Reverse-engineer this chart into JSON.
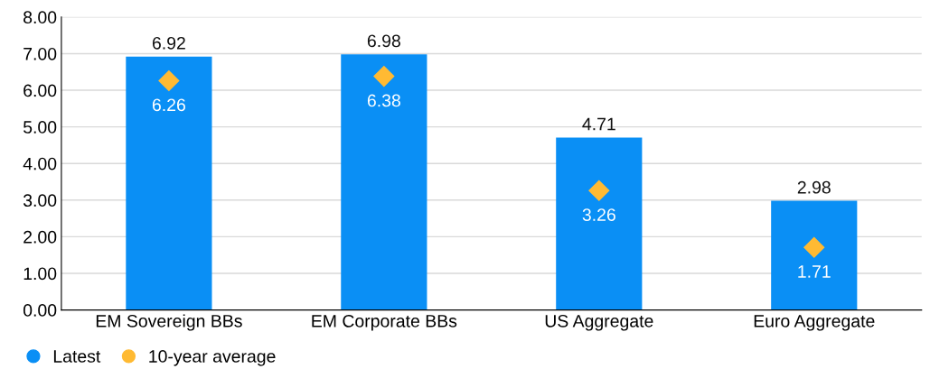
{
  "chart_data": {
    "type": "bar",
    "categories": [
      "EM Sovereign BBs",
      "EM Corporate BBs",
      "US Aggregate",
      "Euro Aggregate"
    ],
    "series": [
      {
        "name": "Latest",
        "color": "#0a8ff5",
        "values": [
          6.92,
          6.98,
          4.71,
          2.98
        ]
      },
      {
        "name": "10-year average",
        "type": "scatter",
        "marker": "diamond",
        "color": "#ffba33",
        "values": [
          6.26,
          6.38,
          3.26,
          1.71
        ]
      }
    ],
    "ylim": [
      0,
      8
    ],
    "yticks": [
      {
        "value": 0,
        "label": "0.00"
      },
      {
        "value": 1,
        "label": "1.00"
      },
      {
        "value": 2,
        "label": "2.00"
      },
      {
        "value": 3,
        "label": "3.00"
      },
      {
        "value": 4,
        "label": "4.00"
      },
      {
        "value": 5,
        "label": "5.00"
      },
      {
        "value": 6,
        "label": "6.00"
      },
      {
        "value": 7,
        "label": "7.00"
      },
      {
        "value": 8,
        "label": "8.00"
      }
    ],
    "grid": "y",
    "legend": "bottom left",
    "data_labels": true
  }
}
